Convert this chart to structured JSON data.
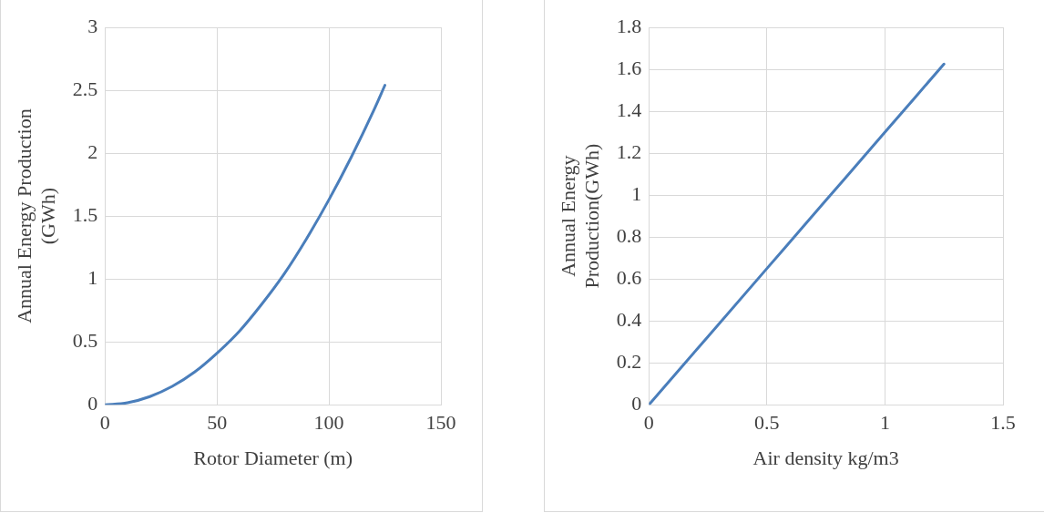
{
  "chart_data": [
    {
      "type": "line",
      "xlabel": "Rotor Diameter (m)",
      "ylabel": "Annual Energy Production (GWh)",
      "x": [
        0,
        10,
        20,
        30,
        40,
        50,
        60,
        70,
        80,
        90,
        100,
        110,
        120,
        125
      ],
      "series": [
        {
          "color": "#4a7ebb",
          "values": [
            0,
            0.016,
            0.065,
            0.146,
            0.26,
            0.41,
            0.585,
            0.8,
            1.04,
            1.32,
            1.63,
            1.97,
            2.34,
            2.54
          ]
        }
      ],
      "xlim": [
        0,
        150
      ],
      "xticks": [
        0,
        50,
        100,
        150
      ],
      "ylim": [
        0,
        3
      ],
      "yticks": [
        0,
        0.5,
        1,
        1.5,
        2,
        2.5,
        3
      ],
      "grid": true,
      "legend": false,
      "marker": "none",
      "line_style": "solid"
    },
    {
      "type": "line",
      "xlabel": "Air density kg/m3",
      "ylabel": "Annual Energy Production(GWh)",
      "x": [
        0,
        0.25,
        0.5,
        0.75,
        1,
        1.25
      ],
      "series": [
        {
          "color": "#4a7ebb",
          "values": [
            0,
            0.325,
            0.65,
            0.975,
            1.3,
            1.625
          ]
        }
      ],
      "xlim": [
        0,
        1.5
      ],
      "xticks": [
        0,
        0.5,
        1,
        1.5
      ],
      "ylim": [
        0,
        1.8
      ],
      "yticks": [
        0,
        0.2,
        0.4,
        0.6,
        0.8,
        1,
        1.2,
        1.4,
        1.6,
        1.8
      ],
      "grid": true,
      "legend": false,
      "marker": "none",
      "line_style": "solid"
    }
  ]
}
